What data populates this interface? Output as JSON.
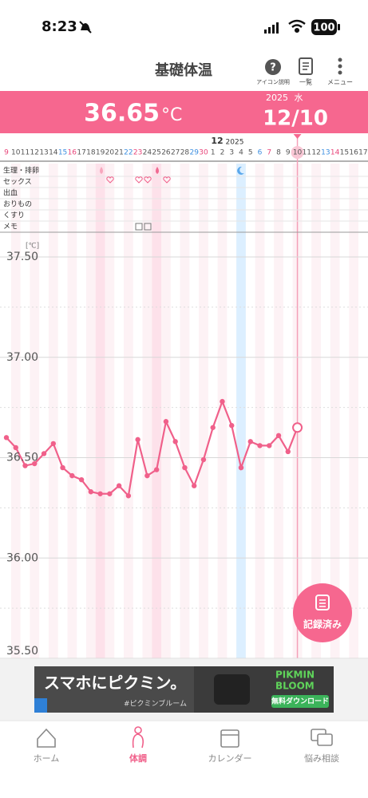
{
  "status_bar": {
    "time": "8:23",
    "battery": "100"
  },
  "header": {
    "title": "基礎体温",
    "help_icon": "?",
    "help_label": "アイコン説明",
    "list_label": "一覧",
    "menu_label": "メニュー"
  },
  "banner": {
    "temperature": "36.65",
    "unit": "°C",
    "year": "2025",
    "weekday": "水",
    "date": "12/10"
  },
  "chart_data": {
    "type": "line",
    "month_label": "12",
    "year_label": "2025",
    "categories": [
      "9",
      "10",
      "11",
      "12",
      "13",
      "14",
      "15",
      "16",
      "17",
      "18",
      "19",
      "20",
      "21",
      "22",
      "23",
      "24",
      "25",
      "26",
      "27",
      "28",
      "29",
      "30",
      "1",
      "2",
      "3",
      "4",
      "5",
      "6",
      "7",
      "8",
      "9",
      "10",
      "11",
      "12",
      "13",
      "14",
      "15",
      "16",
      "17"
    ],
    "category_colors": [
      "#e8457a",
      "#555555",
      "#555555",
      "#555555",
      "#555555",
      "#555555",
      "#3d8fe0",
      "#e8457a",
      "#555555",
      "#555555",
      "#555555",
      "#555555",
      "#555555",
      "#3d8fe0",
      "#e8457a",
      "#555555",
      "#555555",
      "#555555",
      "#555555",
      "#555555",
      "#3d8fe0",
      "#e8457a",
      "#555555",
      "#555555",
      "#555555",
      "#555555",
      "#555555",
      "#3d8fe0",
      "#e8457a",
      "#555555",
      "#555555",
      "#555555",
      "#555555",
      "#555555",
      "#3d8fe0",
      "#e8457a",
      "#555555",
      "#555555",
      "#555555"
    ],
    "rows": [
      "生理・排卵",
      "セックス",
      "出血",
      "おりもの",
      "くすり",
      "メモ"
    ],
    "y_unit": "[℃]",
    "values": [
      36.6,
      36.55,
      36.46,
      36.47,
      36.52,
      36.57,
      36.45,
      36.41,
      36.39,
      36.33,
      36.32,
      36.32,
      36.36,
      36.31,
      36.59,
      36.41,
      36.44,
      36.68,
      36.58,
      36.45,
      36.36,
      36.49,
      36.65,
      36.78,
      36.66,
      36.45,
      36.58,
      36.56,
      36.56,
      36.61,
      36.53,
      36.65,
      null,
      null,
      null,
      null,
      null,
      null,
      null
    ],
    "color": "#f0608a",
    "ylim": [
      35.5,
      37.5
    ],
    "yticks": [
      {
        "value": 37.5,
        "label": "37.50"
      },
      {
        "value": 37.0,
        "label": "37.00"
      },
      {
        "value": 36.5,
        "label": "36.50"
      },
      {
        "value": 36.0,
        "label": "36.00"
      },
      {
        "value": 35.5,
        "label": "35.50"
      }
    ],
    "minor_grid": [
      37.25,
      36.75,
      36.25,
      35.75
    ],
    "grid": true
  },
  "record_button": "記録済み",
  "ad": {
    "headline": "スマホにピクミン。",
    "hashtag": "#ピクミンブルーム",
    "brand_line1": "PIKMIN",
    "brand_line2": "BLOOM",
    "cta": "無料ダウンロード"
  },
  "nav": [
    {
      "label": "ホーム"
    },
    {
      "label": "体調",
      "active": true
    },
    {
      "label": "カレンダー"
    },
    {
      "label": "悩み相談"
    }
  ]
}
